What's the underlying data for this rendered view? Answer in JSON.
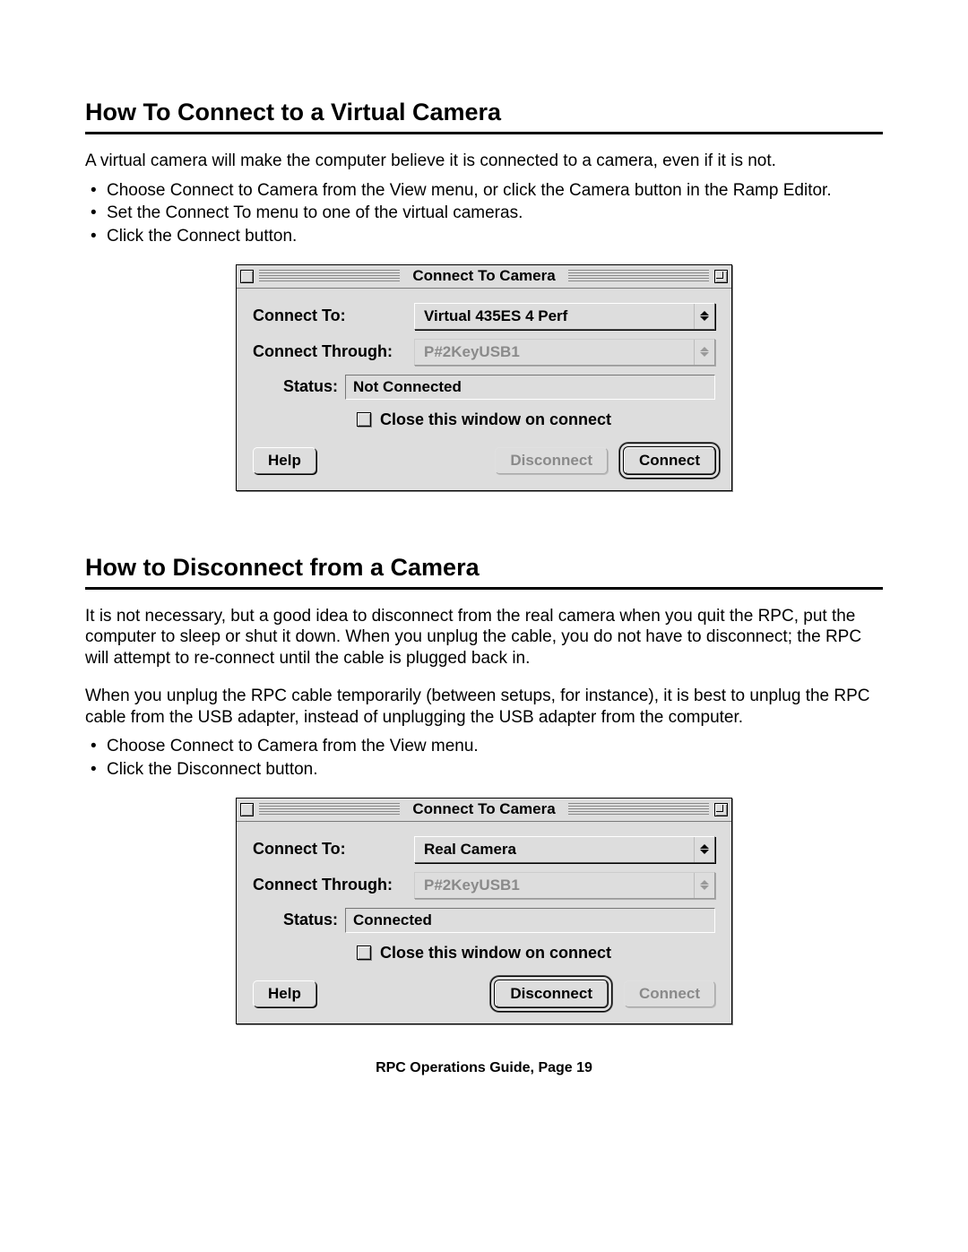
{
  "section1": {
    "heading": "How To Connect to a Virtual Camera",
    "intro": "A virtual camera will make the computer believe it is connected to a camera, even if it is not.",
    "bullets": [
      "Choose Connect to Camera from the View menu, or click the Camera button in the Ramp Editor.",
      "Set the Connect To menu to one of the virtual cameras.",
      "Click the Connect button."
    ]
  },
  "section2": {
    "heading": "How to Disconnect from a Camera",
    "para1": "It is not necessary, but a good idea to disconnect from the real camera when you quit the RPC, put the computer to sleep or shut it down. When you unplug the cable, you do not have to disconnect; the RPC will attempt to re-connect until the cable is plugged back in.",
    "para2": "When you unplug the RPC cable temporarily (between setups, for instance), it is best to unplug the RPC cable from the USB adapter, instead of unplugging the USB adapter from the computer.",
    "bullets": [
      "Choose Connect to Camera from the View menu.",
      "Click the Disconnect button."
    ]
  },
  "dialog1": {
    "title": "Connect To Camera",
    "connect_to_label": "Connect To:",
    "connect_to_value": "Virtual 435ES 4 Perf",
    "connect_through_label": "Connect Through:",
    "connect_through_value": "P#2KeyUSB1",
    "status_label": "Status:",
    "status_value": "Not Connected",
    "checkbox_label": "Close this window on connect",
    "help_btn": "Help",
    "disconnect_btn": "Disconnect",
    "connect_btn": "Connect"
  },
  "dialog2": {
    "title": "Connect To Camera",
    "connect_to_label": "Connect To:",
    "connect_to_value": "Real Camera",
    "connect_through_label": "Connect Through:",
    "connect_through_value": "P#2KeyUSB1",
    "status_label": "Status:",
    "status_value": "Connected",
    "checkbox_label": "Close this window on connect",
    "help_btn": "Help",
    "disconnect_btn": "Disconnect",
    "connect_btn": "Connect"
  },
  "footer": "RPC Operations Guide, Page 19",
  "colors": {
    "page_bg": "#ffffff",
    "dialog_bg": "#dddddd",
    "text": "#000000",
    "disabled_text": "#8a8a8a",
    "rule": "#000000"
  }
}
